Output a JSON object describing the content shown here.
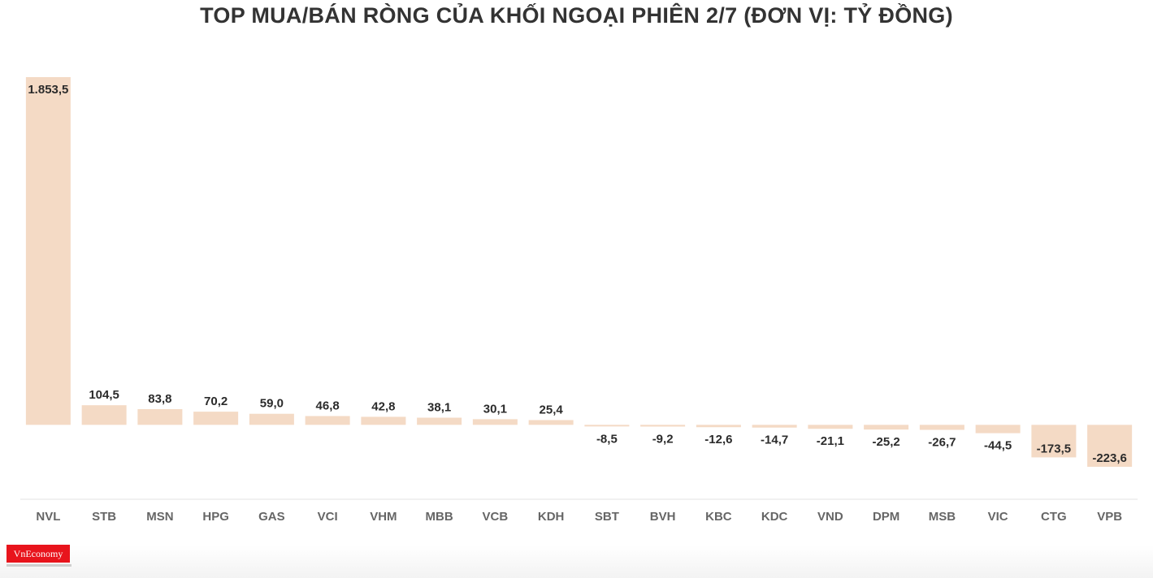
{
  "chart_data": {
    "type": "bar",
    "title": "TOP MUA/BÁN RÒNG CỦA KHỐI NGOẠI PHIÊN 2/7 (ĐƠN VỊ: TỶ ĐỒNG)",
    "xlabel": "",
    "ylabel": "",
    "categories": [
      "NVL",
      "STB",
      "MSN",
      "HPG",
      "GAS",
      "VCI",
      "VHM",
      "MBB",
      "VCB",
      "KDH",
      "SBT",
      "BVH",
      "KBC",
      "KDC",
      "VND",
      "DPM",
      "MSB",
      "VIC",
      "CTG",
      "VPB"
    ],
    "values": [
      1853.5,
      104.5,
      83.8,
      70.2,
      59.0,
      46.8,
      42.8,
      38.1,
      30.1,
      25.4,
      -8.5,
      -9.2,
      -12.6,
      -14.7,
      -21.1,
      -25.2,
      -26.7,
      -44.5,
      -173.5,
      -223.6
    ],
    "labels": [
      "1.853,5",
      "104,5",
      "83,8",
      "70,2",
      "59,0",
      "46,8",
      "42,8",
      "38,1",
      "30,1",
      "25,4",
      "-8,5",
      "-9,2",
      "-12,6",
      "-14,7",
      "-21,1",
      "-25,2",
      "-26,7",
      "-44,5",
      "-173,5",
      "-223,6"
    ],
    "ylim": [
      -223.6,
      1853.5
    ],
    "grid": false,
    "bar_color": "#f4dac5",
    "axis_color": "#e3e3e3"
  },
  "brand": {
    "logo_text": "VnEconomy",
    "logo_color": "#e8141c"
  }
}
